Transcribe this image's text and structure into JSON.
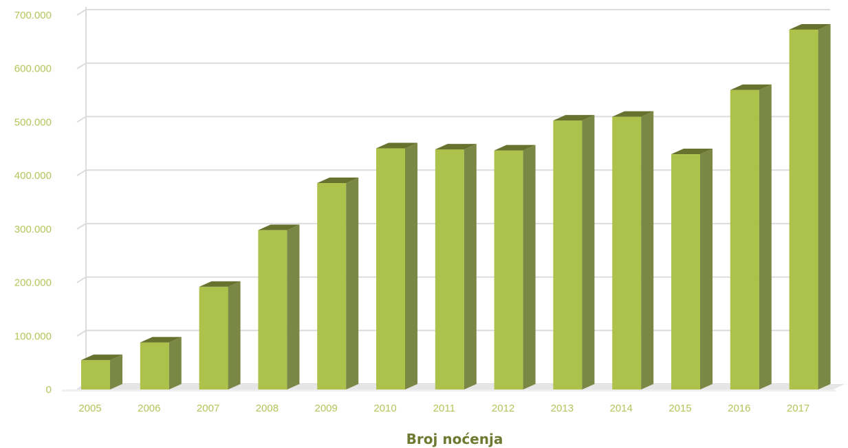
{
  "chart_data": {
    "type": "bar",
    "title": "Broj noćenja",
    "categories": [
      "2005",
      "2006",
      "2007",
      "2008",
      "2009",
      "2010",
      "2011",
      "2012",
      "2013",
      "2014",
      "2015",
      "2016",
      "2017"
    ],
    "values": [
      55000,
      88000,
      192000,
      298000,
      386000,
      451000,
      449000,
      447000,
      503000,
      510000,
      440000,
      560000,
      673000
    ],
    "y_tick_labels": [
      "0",
      "100.000",
      "200.000",
      "300.000",
      "400.000",
      "500.000",
      "600.000",
      "700.000"
    ],
    "ylim": [
      0,
      700000
    ],
    "grid": true,
    "style": "3d-column",
    "colors": {
      "bar_front": "#adc24a",
      "bar_side": "#7b8745",
      "bar_top": "#66722e",
      "tick_text": "#b5c45a",
      "title_text": "#6c7a32",
      "grid": "#dcdcdc"
    }
  }
}
